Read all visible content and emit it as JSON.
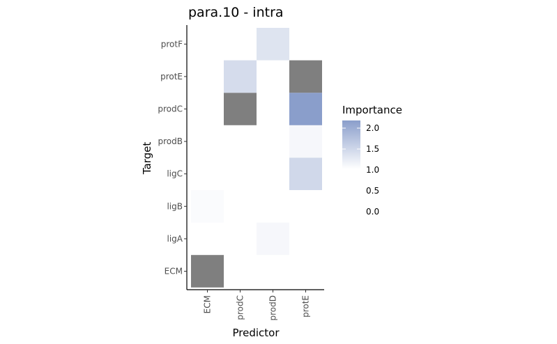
{
  "chart_data": {
    "type": "heatmap",
    "title": "para.10 - intra",
    "xlabel": "Predictor",
    "ylabel": "Target",
    "x_categories": [
      "ECM",
      "prodC",
      "prodD",
      "protE"
    ],
    "y_categories": [
      "ECM",
      "ligA",
      "ligB",
      "ligC",
      "prodB",
      "prodC",
      "protE",
      "protF"
    ],
    "cells": [
      {
        "x": "ECM",
        "y": "ECM",
        "value": null,
        "na": true
      },
      {
        "x": "prodC",
        "y": "ECM",
        "value": 1.0
      },
      {
        "x": "ECM",
        "y": "ligB",
        "value": 1.05
      },
      {
        "x": "prodD",
        "y": "ligA",
        "value": 1.1
      },
      {
        "x": "protE",
        "y": "ligC",
        "value": 1.5
      },
      {
        "x": "protE",
        "y": "prodB",
        "value": 1.1
      },
      {
        "x": "prodC",
        "y": "prodC",
        "value": null,
        "na": true
      },
      {
        "x": "protE",
        "y": "prodC",
        "value": 2.25
      },
      {
        "x": "prodC",
        "y": "protE",
        "value": 1.45
      },
      {
        "x": "protE",
        "y": "protE",
        "value": null,
        "na": true
      },
      {
        "x": "prodD",
        "y": "protF",
        "value": 1.35
      }
    ],
    "legend": {
      "title": "Importance",
      "ticks": [
        "2.0",
        "1.5",
        "1.0",
        "0.5",
        "0.0"
      ],
      "range": [
        1.0,
        2.25
      ],
      "low_color": "#ffffff",
      "high_color": "#8a9ecb",
      "na_color": "#7f7f7f",
      "placement": "right"
    },
    "grid": false
  }
}
